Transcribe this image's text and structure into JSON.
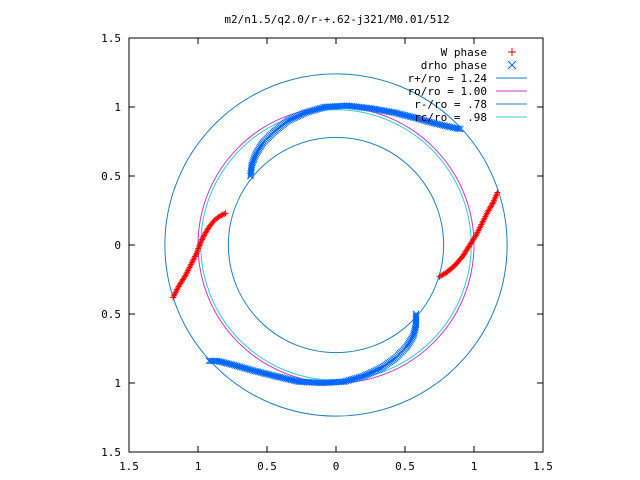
{
  "chart_data": {
    "type": "scatter",
    "title": "m2/n1.5/q2.0/r-+.62-j321/M0.01/512",
    "xlim": [
      -1.5,
      1.5
    ],
    "ylim": [
      -1.5,
      1.5
    ],
    "x_ticks": [
      -1.5,
      -1,
      -0.5,
      0,
      0.5,
      1,
      1.5
    ],
    "y_ticks": [
      -1.5,
      -1,
      -0.5,
      0,
      0.5,
      1,
      1.5
    ],
    "x_tick_labels": [
      "1.5",
      "1",
      "0.5",
      "0",
      "0.5",
      "1",
      "1.5"
    ],
    "y_tick_labels": [
      "1.5",
      "1",
      "0.5",
      "0",
      "0.5",
      "1",
      "1.5"
    ],
    "grid": false,
    "legend_position": "top-right",
    "series": [
      {
        "name": "W phase",
        "marker": "+",
        "color": "#ff0000",
        "arms": [
          [
            [
              -1.18,
              -0.38
            ],
            [
              -1.14,
              -0.3
            ],
            [
              -1.09,
              -0.22
            ],
            [
              -1.05,
              -0.14
            ],
            [
              -1.01,
              -0.06
            ],
            [
              -0.98,
              0.02
            ],
            [
              -0.95,
              0.08
            ],
            [
              -0.92,
              0.13
            ],
            [
              -0.88,
              0.18
            ],
            [
              -0.84,
              0.21
            ],
            [
              -0.8,
              0.23
            ]
          ],
          [
            [
              0.75,
              -0.23
            ],
            [
              0.8,
              -0.2
            ],
            [
              0.86,
              -0.15
            ],
            [
              0.92,
              -0.08
            ],
            [
              0.97,
              0.0
            ],
            [
              1.02,
              0.08
            ],
            [
              1.06,
              0.16
            ],
            [
              1.1,
              0.24
            ],
            [
              1.14,
              0.31
            ],
            [
              1.17,
              0.38
            ]
          ]
        ]
      },
      {
        "name": "drho phase",
        "marker": "x",
        "color": "#0066ff",
        "arms": [
          [
            [
              -0.62,
              0.5
            ],
            [
              -0.61,
              0.58
            ],
            [
              -0.58,
              0.66
            ],
            [
              -0.53,
              0.74
            ],
            [
              -0.45,
              0.82
            ],
            [
              -0.35,
              0.9
            ],
            [
              -0.22,
              0.96
            ],
            [
              -0.08,
              1.0
            ],
            [
              0.08,
              1.01
            ],
            [
              0.25,
              0.99
            ],
            [
              0.42,
              0.96
            ],
            [
              0.58,
              0.92
            ],
            [
              0.72,
              0.88
            ],
            [
              0.85,
              0.85
            ],
            [
              0.9,
              0.84
            ]
          ],
          [
            [
              0.58,
              -0.5
            ],
            [
              0.58,
              -0.58
            ],
            [
              0.56,
              -0.66
            ],
            [
              0.51,
              -0.74
            ],
            [
              0.43,
              -0.82
            ],
            [
              0.33,
              -0.89
            ],
            [
              0.2,
              -0.95
            ],
            [
              0.06,
              -0.99
            ],
            [
              -0.1,
              -1.0
            ],
            [
              -0.27,
              -0.99
            ],
            [
              -0.44,
              -0.95
            ],
            [
              -0.6,
              -0.91
            ],
            [
              -0.74,
              -0.87
            ],
            [
              -0.86,
              -0.84
            ],
            [
              -0.92,
              -0.84
            ]
          ]
        ]
      },
      {
        "name": "r+/ro = 1.24",
        "type": "circle",
        "radius": 1.24,
        "color": "#1a7fc0"
      },
      {
        "name": "ro/ro = 1.00",
        "type": "circle",
        "radius": 1.0,
        "color": "#cc33cc"
      },
      {
        "name": "r-/ro = .78",
        "type": "circle",
        "radius": 0.78,
        "color": "#1a7fc0"
      },
      {
        "name": "rc/ro = .98",
        "type": "circle",
        "radius": 0.98,
        "color": "#33cccc"
      }
    ]
  }
}
